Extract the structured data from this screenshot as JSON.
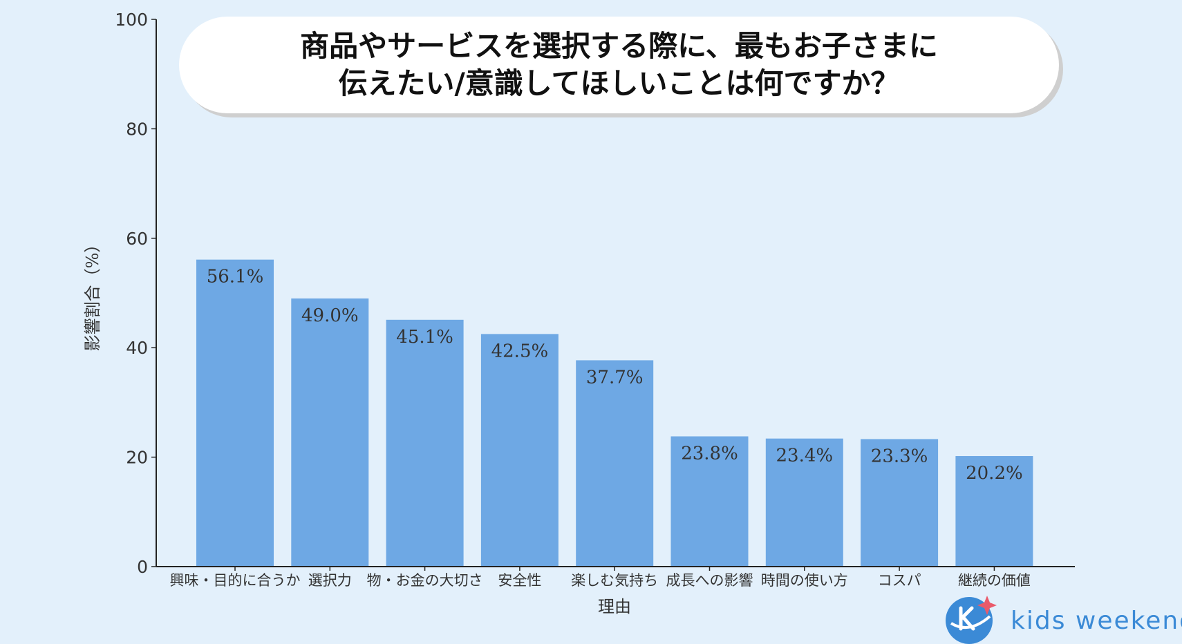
{
  "chart_data": {
    "type": "bar",
    "title_lines": [
      "商品やサービスを選択する際に、最もお子さまに",
      "伝えたい/意識してほしいことは何ですか？"
    ],
    "xlabel": "理由",
    "ylabel": "影響割合（%）",
    "ylim": [
      0,
      100
    ],
    "yticks": [
      "0",
      "20",
      "40",
      "60",
      "80",
      "100"
    ],
    "categories": [
      "興味・目的に合うか",
      "選択力",
      "物・お金の大切さ",
      "安全性",
      "楽しむ気持ち",
      "成長への影響",
      "時間の使い方",
      "コスパ",
      "継続の価値"
    ],
    "values": [
      56.1,
      49.0,
      45.1,
      42.5,
      37.7,
      23.8,
      23.4,
      23.3,
      20.2
    ],
    "value_labels": [
      "56.1%",
      "49.0%",
      "45.1%",
      "42.5%",
      "37.7%",
      "23.8%",
      "23.4%",
      "23.3%",
      "20.2%"
    ],
    "bar_color": "#6ea8e4",
    "grid": false
  },
  "logo": {
    "brand_text": "kids weekend",
    "icon": "k-planet-star-icon",
    "color": "#3b8ad6"
  }
}
